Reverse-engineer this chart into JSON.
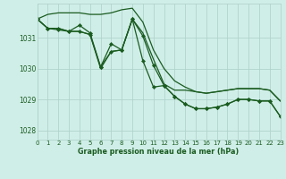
{
  "title": "Graphe pression niveau de la mer (hPa)",
  "bg_color": "#d0eee8",
  "grid_color": "#b0d4cc",
  "line_color": "#1a5c20",
  "xlim": [
    0,
    23
  ],
  "ylim": [
    1027.7,
    1032.1
  ],
  "yticks": [
    1028,
    1029,
    1030,
    1031
  ],
  "x_labels": [
    "0",
    "1",
    "2",
    "3",
    "4",
    "5",
    "6",
    "7",
    "8",
    "9",
    "10",
    "11",
    "12",
    "13",
    "14",
    "15",
    "16",
    "17",
    "18",
    "19",
    "20",
    "21",
    "22",
    "23"
  ],
  "series": [
    {
      "y": [
        1031.6,
        1031.75,
        1031.8,
        1031.8,
        1031.8,
        1031.75,
        1031.75,
        1031.8,
        1031.9,
        1031.95,
        1031.5,
        1030.6,
        1030.0,
        1029.6,
        1029.4,
        1029.25,
        1029.2,
        1029.25,
        1029.3,
        1029.35,
        1029.35,
        1029.35,
        1029.3,
        1028.95
      ],
      "marker": false
    },
    {
      "y": [
        1031.6,
        1031.3,
        1031.3,
        1031.2,
        1031.2,
        1031.1,
        1030.0,
        1030.55,
        1030.6,
        1031.6,
        1031.15,
        1030.3,
        1029.5,
        1029.3,
        1029.3,
        1029.25,
        1029.2,
        1029.25,
        1029.3,
        1029.35,
        1029.35,
        1029.35,
        1029.3,
        1028.95
      ],
      "marker": false
    },
    {
      "y": [
        1031.6,
        1031.3,
        1031.3,
        1031.2,
        1031.4,
        1031.15,
        1030.05,
        1030.8,
        1030.6,
        1031.6,
        1031.05,
        1030.1,
        1029.45,
        1029.1,
        1028.85,
        1028.7,
        1028.7,
        1028.75,
        1028.85,
        1029.0,
        1029.0,
        1028.95,
        1028.95,
        1028.45
      ],
      "marker": true
    },
    {
      "y": [
        1031.6,
        1031.3,
        1031.25,
        1031.2,
        1031.2,
        1031.1,
        1030.05,
        1030.55,
        1030.6,
        1031.6,
        1030.25,
        1029.4,
        1029.45,
        1029.1,
        1028.85,
        1028.7,
        1028.7,
        1028.75,
        1028.85,
        1029.0,
        1029.0,
        1028.95,
        1028.95,
        1028.45
      ],
      "marker": true
    }
  ]
}
